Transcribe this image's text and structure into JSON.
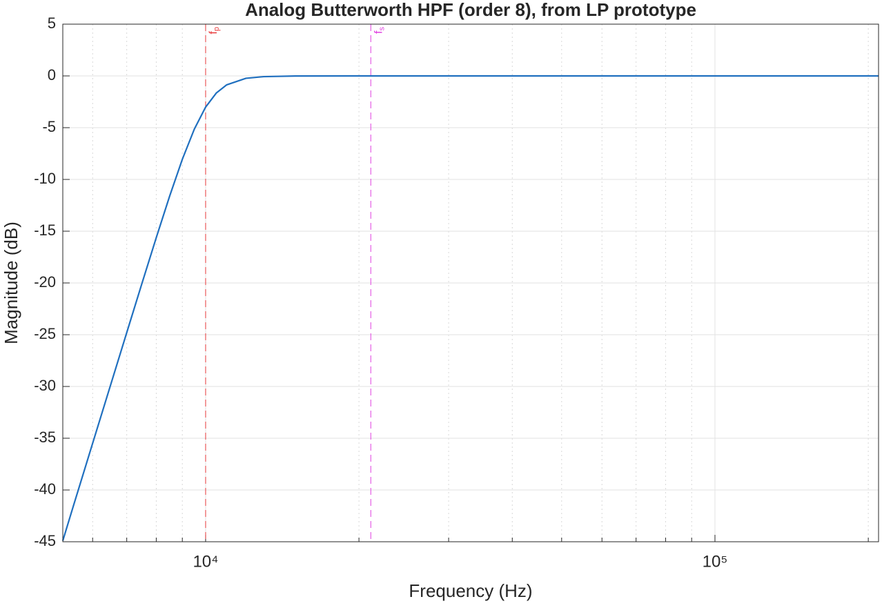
{
  "chart_data": {
    "type": "line",
    "title": "Analog Butterworth HPF (order 8), from LP prototype",
    "xlabel": "Frequency (Hz)",
    "ylabel": "Magnitude (dB)",
    "x": [
      5243,
      5500,
      6000,
      6500,
      7000,
      7500,
      8000,
      8500,
      9000,
      9500,
      10000,
      10500,
      11000,
      12000,
      13000,
      15000,
      20000,
      50000,
      100000,
      209500
    ],
    "series": [
      {
        "name": "Magnitude",
        "color": "#1f6fbf",
        "values": [
          -44.9,
          -41.54,
          -35.49,
          -29.94,
          -24.8,
          -20.03,
          -15.62,
          -11.6,
          -8.06,
          -5.15,
          -3.01,
          -1.64,
          -0.86,
          -0.23,
          -0.07,
          -0.01,
          0,
          0,
          0,
          0
        ]
      }
    ],
    "xscale": "log",
    "xlim": [
      5243,
      209500
    ],
    "ylim": [
      -45,
      5
    ],
    "xticks": [
      {
        "value": 10000,
        "label": "10⁴"
      },
      {
        "value": 100000,
        "label": "10⁵"
      }
    ],
    "xminorticks": [
      6000,
      7000,
      8000,
      9000,
      20000,
      30000,
      40000,
      50000,
      60000,
      70000,
      80000,
      90000,
      200000
    ],
    "yticks": [
      -45,
      -40,
      -35,
      -30,
      -25,
      -20,
      -15,
      -10,
      -5,
      0,
      5
    ],
    "grid": true,
    "annotations": [
      {
        "label": "f",
        "subscript": "p",
        "x": 10000,
        "color": "#e8393a"
      },
      {
        "label": "f",
        "subscript": "s",
        "x": 21100,
        "color": "#e040e0"
      }
    ]
  }
}
